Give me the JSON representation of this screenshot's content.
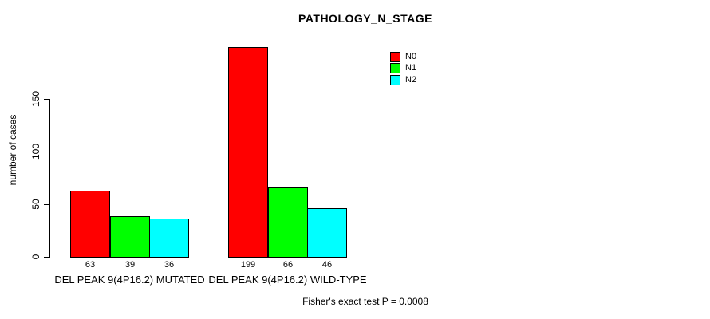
{
  "chart_data": {
    "type": "bar",
    "title": "PATHOLOGY_N_STAGE",
    "ylabel": "number of cases",
    "xlabel": "",
    "yticks": [
      0,
      50,
      100,
      150
    ],
    "ylim": [
      0,
      150
    ],
    "grid": false,
    "legend_position": "top-right",
    "bar_value_labels_shown": true,
    "categories": [
      "DEL PEAK 9(4P16.2) MUTATED",
      "DEL PEAK 9(4P16.2) WILD-TYPE"
    ],
    "series": [
      {
        "name": "N0",
        "color": "#ff0000",
        "values": [
          63,
          199
        ]
      },
      {
        "name": "N1",
        "color": "#00ff00",
        "values": [
          39,
          66
        ]
      },
      {
        "name": "N2",
        "color": "#00ffff",
        "values": [
          36,
          46
        ]
      }
    ],
    "annotation": "Fisher's exact test P = 0.0008"
  }
}
